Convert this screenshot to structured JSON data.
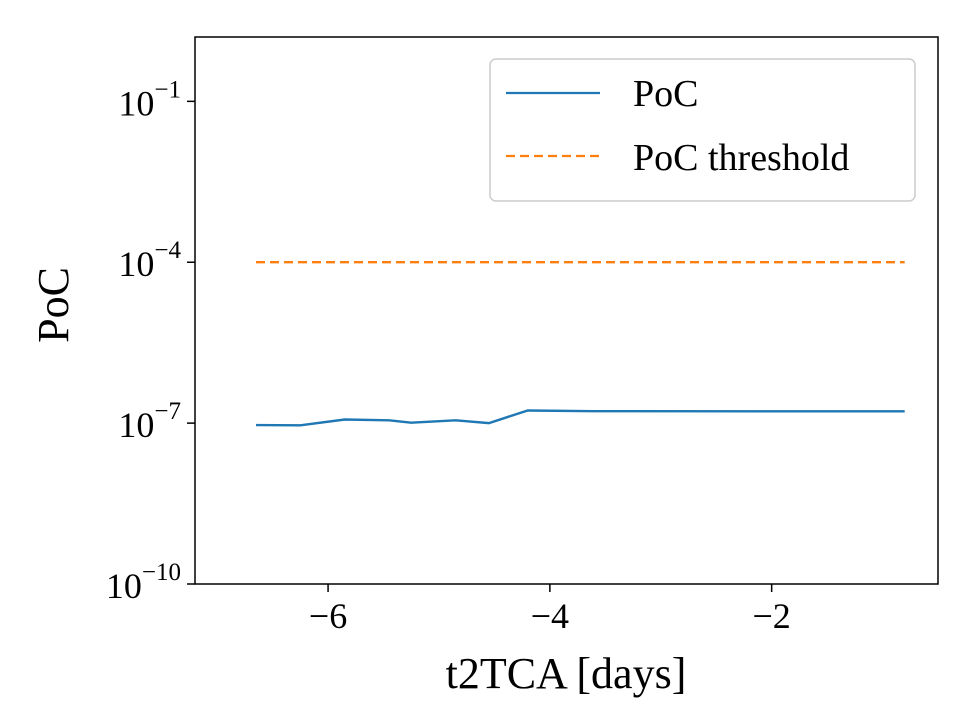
{
  "chart_data": {
    "type": "line",
    "title": "",
    "xlabel": "t2TCA [days]",
    "ylabel": "PoC",
    "yscale": "log",
    "xlim": [
      -7.2,
      -0.5
    ],
    "ylim_log10": [
      -10,
      0.2
    ],
    "x_ticks": [
      {
        "value": -6,
        "label": "−6"
      },
      {
        "value": -4,
        "label": "−4"
      },
      {
        "value": -2,
        "label": "−2"
      }
    ],
    "y_ticks": [
      {
        "exp": -1,
        "base": "10",
        "sup": "−1"
      },
      {
        "exp": -4,
        "base": "10",
        "sup": "−4"
      },
      {
        "exp": -7,
        "base": "10",
        "sup": "−7"
      },
      {
        "exp": -10,
        "base": "10",
        "sup": "−10"
      }
    ],
    "series": [
      {
        "name": "PoC",
        "color": "#1f77b4",
        "style": "solid",
        "x": [
          -6.65,
          -6.25,
          -5.85,
          -5.45,
          -5.25,
          -4.85,
          -4.55,
          -4.2,
          -3.6,
          -2.0,
          -0.8
        ],
        "y": [
          9.2e-08,
          9.1e-08,
          1.17e-07,
          1.13e-07,
          1.02e-07,
          1.13e-07,
          1e-07,
          1.72e-07,
          1.67e-07,
          1.66e-07,
          1.66e-07
        ]
      },
      {
        "name": "PoC threshold",
        "color": "#ff7f0e",
        "style": "dashed",
        "x": [
          -6.65,
          -0.8
        ],
        "y": [
          0.0001,
          0.0001
        ]
      }
    ],
    "legend": {
      "position": "top-right",
      "entries": [
        "PoC",
        "PoC threshold"
      ]
    },
    "grid": false
  }
}
